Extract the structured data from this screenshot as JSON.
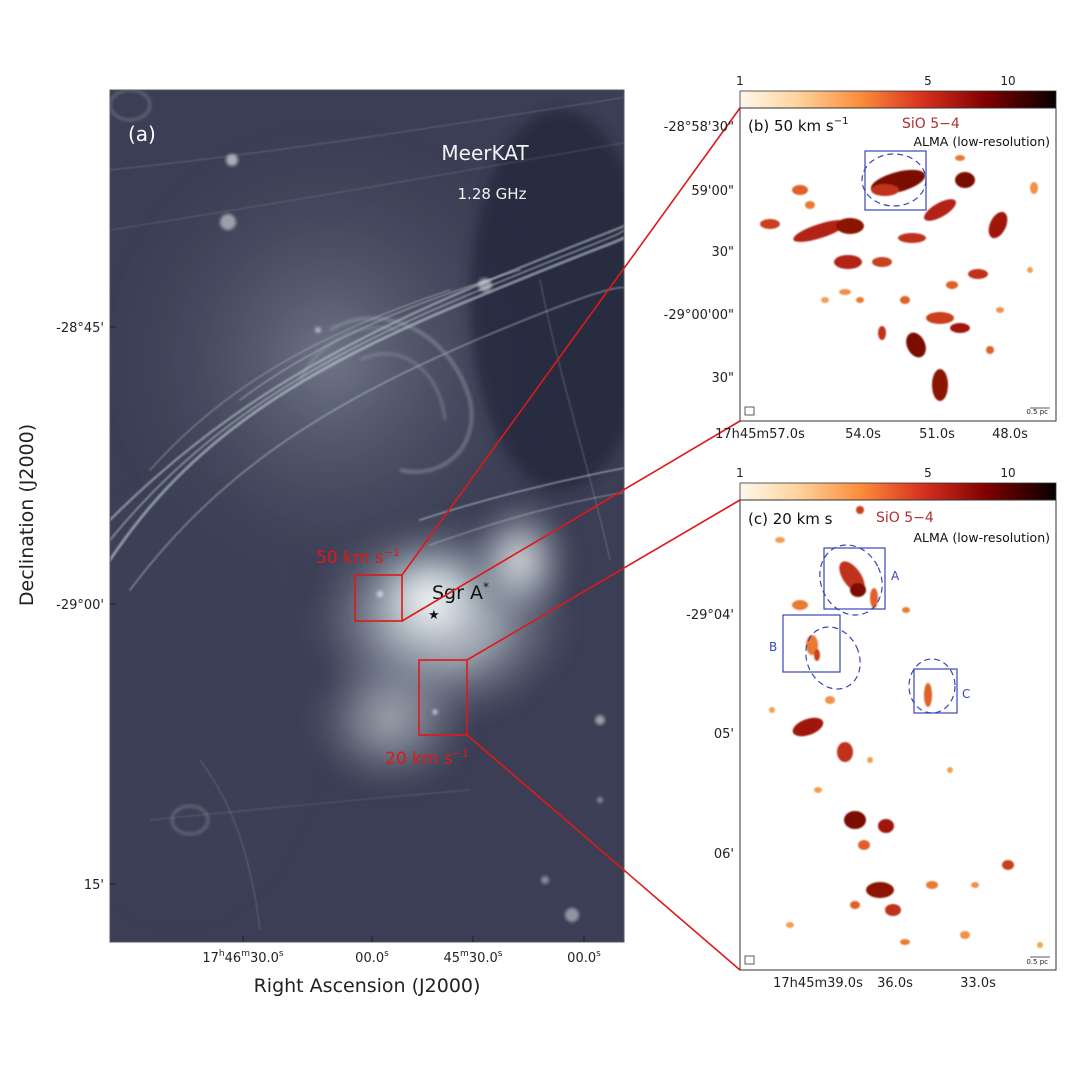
{
  "panel_a": {
    "letter": "(a)",
    "telescope": "MeerKAT",
    "frequency": "1.28 GHz",
    "source_label": "Sgr A",
    "source_label_sup": "*",
    "ylabel": "Declination (J2000)",
    "xlabel": "Right Ascension (J2000)",
    "dec_ticks": [
      "-28°45'",
      "-29°00'",
      "15'"
    ],
    "ra_ticks": [
      {
        "main": "17",
        "h": "h",
        "mid": "46",
        "m": "m",
        "tail": "30.0",
        "s": "s"
      },
      {
        "main": "00.0",
        "s": "s"
      },
      {
        "main": "45",
        "m": "m",
        "tail": "30.0",
        "s": "s"
      },
      {
        "main": "00.0",
        "s": "s"
      }
    ],
    "box_50_label": "50 km s",
    "box_20_label": "20 km s",
    "unit_exp": "−1"
  },
  "panel_b": {
    "title": "(b) 50 km s",
    "title_exp": "−1",
    "line": "SiO 5−4",
    "instrument": "ALMA (low-resolution)",
    "colorbar_ticks": [
      "1",
      "5",
      "10"
    ],
    "dec_ticks": [
      "-28°58'30\"",
      "59'00\"",
      "30\"",
      "-29°00'00\"",
      "30\""
    ],
    "ra_ticks": [
      "17h45m57.0s",
      "54.0s",
      "51.0s",
      "48.0s"
    ],
    "scale_bar": "0.5 pc"
  },
  "panel_c": {
    "title": "(c) 20 km s",
    "line": "SiO 5−4",
    "instrument": "ALMA (low-resolution)",
    "colorbar_ticks": [
      "1",
      "5",
      "10"
    ],
    "dec_ticks": [
      "-29°04'",
      "05'",
      "06'"
    ],
    "ra_ticks": [
      "17h45m39.0s",
      "36.0s",
      "33.0s"
    ],
    "regions": [
      "A",
      "B",
      "C"
    ],
    "scale_bar": "0.5 pc"
  },
  "colors": {
    "radio_dark": "#3c3f55",
    "radio_bright": "#e8eef2",
    "sio_dark": "#7a0c00",
    "sio_light": "#f0a050",
    "box_red": "#e01818",
    "region_blue": "#3a45b8"
  }
}
